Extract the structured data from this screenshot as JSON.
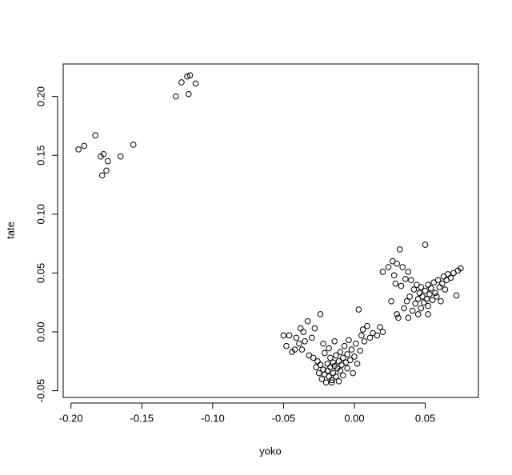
{
  "chart_data": {
    "type": "scatter",
    "x_label": "yoko",
    "y_label": "tate",
    "xlim": [
      -0.2055,
      0.0875
    ],
    "ylim": [
      -0.0557,
      0.2276
    ],
    "xticks": [
      {
        "value": -0.2,
        "label": "-0.20"
      },
      {
        "value": -0.15,
        "label": "-0.15"
      },
      {
        "value": -0.1,
        "label": "-0.10"
      },
      {
        "value": -0.05,
        "label": "-0.05"
      },
      {
        "value": 0,
        "label": "0.00"
      },
      {
        "value": 0.05,
        "label": "0.05"
      }
    ],
    "yticks": [
      {
        "value": -0.05,
        "label": "-0.05"
      },
      {
        "value": 0,
        "label": "0.00"
      },
      {
        "value": 0.05,
        "label": "0.05"
      },
      {
        "value": 0.1,
        "label": "0.10"
      },
      {
        "value": 0.15,
        "label": "0.15"
      },
      {
        "value": 0.2,
        "label": "0.20"
      }
    ],
    "color": "#000000",
    "x": [
      -0.1947,
      -0.1907,
      -0.1828,
      -0.179,
      -0.177,
      -0.178,
      -0.175,
      -0.174,
      -0.165,
      -0.156,
      -0.126,
      -0.122,
      -0.118,
      -0.116,
      -0.117,
      -0.112,
      -0.05,
      -0.048,
      -0.046,
      -0.044,
      -0.042,
      -0.041,
      -0.039,
      -0.038,
      -0.037,
      -0.036,
      -0.035,
      -0.033,
      -0.032,
      -0.03,
      -0.029,
      -0.028,
      -0.027,
      -0.026,
      -0.025,
      -0.024,
      -0.024,
      -0.023,
      -0.022,
      -0.021,
      -0.021,
      -0.02,
      -0.019,
      -0.019,
      -0.018,
      -0.017,
      -0.017,
      -0.016,
      -0.015,
      -0.015,
      -0.014,
      -0.013,
      -0.013,
      -0.012,
      -0.011,
      -0.011,
      -0.01,
      -0.01,
      -0.009,
      -0.008,
      -0.008,
      -0.007,
      -0.006,
      -0.005,
      -0.005,
      -0.004,
      -0.003,
      -0.002,
      -0.001,
      0.0,
      0.001,
      0.002,
      0.003,
      0.004,
      0.005,
      0.006,
      0.007,
      0.009,
      0.011,
      0.013,
      0.016,
      0.018,
      0.02,
      -0.022,
      -0.018,
      -0.014,
      -0.016,
      0.02,
      0.024,
      0.026,
      0.027,
      0.028,
      0.029,
      0.03,
      0.031,
      0.032,
      0.033,
      0.034,
      0.035,
      0.036,
      0.037,
      0.038,
      0.039,
      0.04,
      0.041,
      0.042,
      0.043,
      0.044,
      0.045,
      0.046,
      0.047,
      0.047,
      0.048,
      0.049,
      0.05,
      0.05,
      0.051,
      0.052,
      0.052,
      0.053,
      0.054,
      0.055,
      0.056,
      0.057,
      0.058,
      0.059,
      0.06,
      0.061,
      0.062,
      0.063,
      0.064,
      0.065,
      0.066,
      0.068,
      0.07,
      0.072,
      0.073,
      0.075,
      0.052,
      0.045,
      0.038,
      0.03
    ],
    "y": [
      0.155,
      0.158,
      0.167,
      0.149,
      0.151,
      0.133,
      0.137,
      0.145,
      0.149,
      0.159,
      0.2,
      0.212,
      0.217,
      0.218,
      0.202,
      0.211,
      -0.003,
      -0.012,
      -0.003,
      -0.017,
      -0.015,
      -0.005,
      -0.01,
      0.003,
      -0.015,
      0.0,
      -0.008,
      0.009,
      -0.02,
      -0.005,
      -0.022,
      0.003,
      -0.03,
      -0.025,
      -0.035,
      0.015,
      -0.028,
      -0.04,
      -0.032,
      -0.018,
      -0.036,
      -0.043,
      -0.027,
      -0.033,
      -0.038,
      -0.022,
      -0.03,
      -0.041,
      -0.026,
      -0.035,
      -0.029,
      -0.02,
      -0.038,
      -0.031,
      -0.025,
      -0.042,
      -0.017,
      -0.033,
      -0.028,
      -0.022,
      -0.037,
      -0.012,
      -0.026,
      -0.031,
      -0.019,
      -0.007,
      -0.024,
      -0.015,
      -0.035,
      -0.021,
      -0.01,
      -0.027,
      0.019,
      -0.016,
      -0.003,
      0.002,
      -0.008,
      0.005,
      -0.005,
      -0.001,
      -0.003,
      0.004,
      0.0,
      -0.01,
      -0.014,
      -0.008,
      -0.043,
      0.051,
      0.055,
      0.026,
      0.06,
      0.048,
      0.041,
      0.058,
      0.012,
      0.07,
      0.039,
      0.055,
      0.02,
      0.045,
      0.026,
      0.051,
      0.03,
      0.044,
      0.018,
      0.036,
      0.024,
      0.04,
      0.028,
      0.033,
      0.02,
      0.038,
      0.03,
      0.025,
      0.074,
      0.035,
      0.028,
      0.04,
      0.022,
      0.032,
      0.037,
      0.027,
      0.042,
      0.033,
      0.03,
      0.044,
      0.038,
      0.026,
      0.041,
      0.047,
      0.036,
      0.044,
      0.049,
      0.046,
      0.05,
      0.031,
      0.052,
      0.054,
      0.015,
      0.015,
      0.012,
      0.015
    ]
  }
}
